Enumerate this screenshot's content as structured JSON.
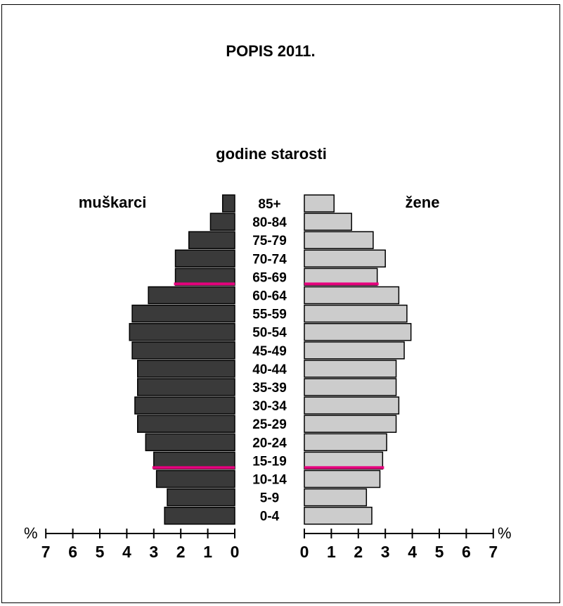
{
  "chart_data": {
    "type": "bar",
    "orientation": "horizontal-population-pyramid",
    "title": "POPIS 2011.",
    "category_axis_label": "godine starosti",
    "categories": [
      "85+",
      "80-84",
      "75-79",
      "70-74",
      "65-69",
      "60-64",
      "55-59",
      "50-54",
      "45-49",
      "40-44",
      "35-39",
      "30-34",
      "25-29",
      "20-24",
      "15-19",
      "10-14",
      "5-9",
      "0-4"
    ],
    "series": [
      {
        "name": "muškarci",
        "side": "left",
        "color": "#3a3a3a",
        "values": [
          0.45,
          0.9,
          1.7,
          2.2,
          2.2,
          3.2,
          3.8,
          3.9,
          3.8,
          3.6,
          3.6,
          3.7,
          3.6,
          3.3,
          3.0,
          2.9,
          2.5,
          2.6
        ]
      },
      {
        "name": "žene",
        "side": "right",
        "color": "#cccccc",
        "values": [
          1.1,
          1.75,
          2.55,
          3.0,
          2.7,
          3.5,
          3.8,
          3.95,
          3.7,
          3.4,
          3.4,
          3.5,
          3.4,
          3.05,
          2.9,
          2.8,
          2.3,
          2.5
        ]
      }
    ],
    "marker_lines": {
      "color": "#e6007e",
      "age_groups": [
        "65-69",
        "15-19"
      ]
    },
    "xlim": [
      0,
      7
    ],
    "x_ticks": [
      "0",
      "1",
      "2",
      "3",
      "4",
      "5",
      "6",
      "7"
    ],
    "x_unit_left": "%",
    "x_unit_right": "%",
    "grid": false,
    "legend": "none"
  }
}
